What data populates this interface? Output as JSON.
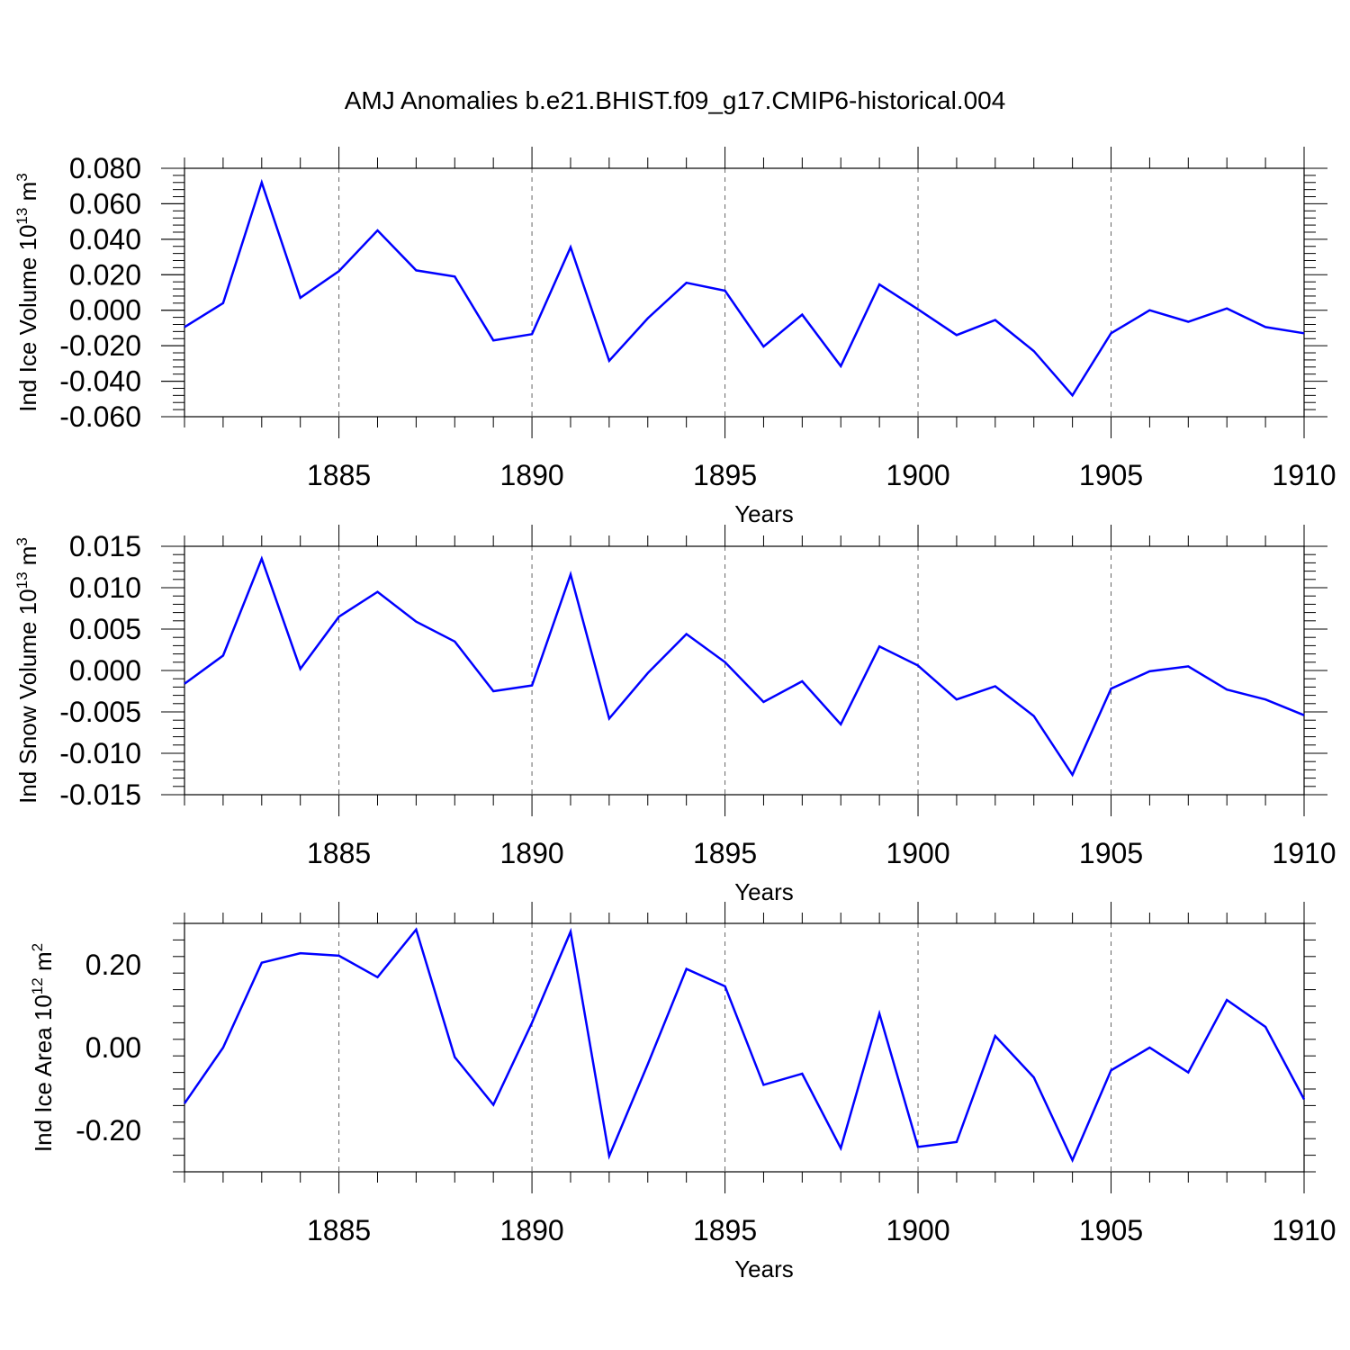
{
  "title": "AMJ Anomalies b.e21.BHIST.f09_g17.CMIP6-historical.004",
  "line_color": "#0000ff",
  "chart_data": [
    {
      "type": "line",
      "ylabel": "Ind Ice Volume 10",
      "ylabel_exp": "13",
      "ylabel_unit": " m",
      "ylabel_unit_exp": "3",
      "xlabel": "Years",
      "xlim": [
        1881,
        1910
      ],
      "ylim": [
        -0.06,
        0.08
      ],
      "yticks": [
        -0.06,
        -0.04,
        -0.02,
        0.0,
        0.02,
        0.04,
        0.06,
        0.08
      ],
      "ytick_labels": [
        "-0.060",
        "-0.040",
        "-0.020",
        "0.000",
        "0.020",
        "0.040",
        "0.060",
        "0.080"
      ],
      "xticks": [
        1885,
        1890,
        1895,
        1900,
        1905,
        1910
      ],
      "xtick_labels": [
        "1885",
        "1890",
        "1895",
        "1900",
        "1905",
        "1910"
      ],
      "x": [
        1881,
        1882,
        1883,
        1884,
        1885,
        1886,
        1887,
        1888,
        1889,
        1890,
        1891,
        1892,
        1893,
        1894,
        1895,
        1896,
        1897,
        1898,
        1899,
        1900,
        1901,
        1902,
        1903,
        1904,
        1905,
        1906,
        1907,
        1908,
        1909,
        1910
      ],
      "series": [
        {
          "name": "Ind Ice Volume",
          "values": [
            -0.0095,
            0.004,
            0.072,
            0.007,
            0.022,
            0.045,
            0.0225,
            0.019,
            -0.017,
            -0.0135,
            0.0355,
            -0.0285,
            -0.0045,
            0.0155,
            0.011,
            -0.0205,
            -0.0025,
            -0.0315,
            0.0145,
            0.0005,
            -0.014,
            -0.0055,
            -0.023,
            -0.048,
            -0.013,
            0.0,
            -0.0065,
            0.001,
            -0.0095,
            -0.013
          ]
        }
      ]
    },
    {
      "type": "line",
      "ylabel": "Ind Snow Volume 10",
      "ylabel_exp": "13",
      "ylabel_unit": " m",
      "ylabel_unit_exp": "3",
      "xlabel": "Years",
      "xlim": [
        1881,
        1910
      ],
      "ylim": [
        -0.015,
        0.015
      ],
      "yticks": [
        -0.015,
        -0.01,
        -0.005,
        0.0,
        0.005,
        0.01,
        0.015
      ],
      "ytick_labels": [
        "-0.015",
        "-0.010",
        "-0.005",
        "0.000",
        "0.005",
        "0.010",
        "0.015"
      ],
      "xticks": [
        1885,
        1890,
        1895,
        1900,
        1905,
        1910
      ],
      "xtick_labels": [
        "1885",
        "1890",
        "1895",
        "1900",
        "1905",
        "1910"
      ],
      "x": [
        1881,
        1882,
        1883,
        1884,
        1885,
        1886,
        1887,
        1888,
        1889,
        1890,
        1891,
        1892,
        1893,
        1894,
        1895,
        1896,
        1897,
        1898,
        1899,
        1900,
        1901,
        1902,
        1903,
        1904,
        1905,
        1906,
        1907,
        1908,
        1909,
        1910
      ],
      "series": [
        {
          "name": "Ind Snow Volume",
          "values": [
            -0.0016,
            0.0018,
            0.0135,
            0.0002,
            0.0065,
            0.0095,
            0.0059,
            0.0035,
            -0.0025,
            -0.0018,
            0.0116,
            -0.0058,
            -0.0003,
            0.0044,
            0.001,
            -0.0038,
            -0.0013,
            -0.0065,
            0.0029,
            0.0006,
            -0.0035,
            -0.0019,
            -0.0055,
            -0.0126,
            -0.0022,
            -0.0001,
            0.0005,
            -0.0023,
            -0.0035,
            -0.0054
          ]
        }
      ]
    },
    {
      "type": "line",
      "ylabel": "Ind Ice Area 10",
      "ylabel_exp": "12",
      "ylabel_unit": " m",
      "ylabel_unit_exp": "2",
      "xlabel": "Years",
      "xlim": [
        1881,
        1910
      ],
      "ylim": [
        -0.3,
        0.3
      ],
      "yticks": [
        -0.2,
        0.0,
        0.2
      ],
      "ytick_labels": [
        "-0.20",
        "0.00",
        "0.20"
      ],
      "xticks": [
        1885,
        1890,
        1895,
        1900,
        1905,
        1910
      ],
      "xtick_labels": [
        "1885",
        "1890",
        "1895",
        "1900",
        "1905",
        "1910"
      ],
      "x": [
        1881,
        1882,
        1883,
        1884,
        1885,
        1886,
        1887,
        1888,
        1889,
        1890,
        1891,
        1892,
        1893,
        1894,
        1895,
        1896,
        1897,
        1898,
        1899,
        1900,
        1901,
        1902,
        1903,
        1904,
        1905,
        1906,
        1907,
        1908,
        1909,
        1910
      ],
      "series": [
        {
          "name": "Ind Ice Area",
          "values": [
            -0.135,
            0.0,
            0.205,
            0.228,
            0.222,
            0.17,
            0.285,
            -0.023,
            -0.138,
            0.06,
            0.28,
            -0.262,
            -0.04,
            0.19,
            0.148,
            -0.09,
            -0.063,
            -0.243,
            0.082,
            -0.24,
            -0.228,
            0.028,
            -0.072,
            -0.272,
            -0.055,
            0.0,
            -0.06,
            0.115,
            0.05,
            -0.125
          ]
        }
      ]
    }
  ]
}
